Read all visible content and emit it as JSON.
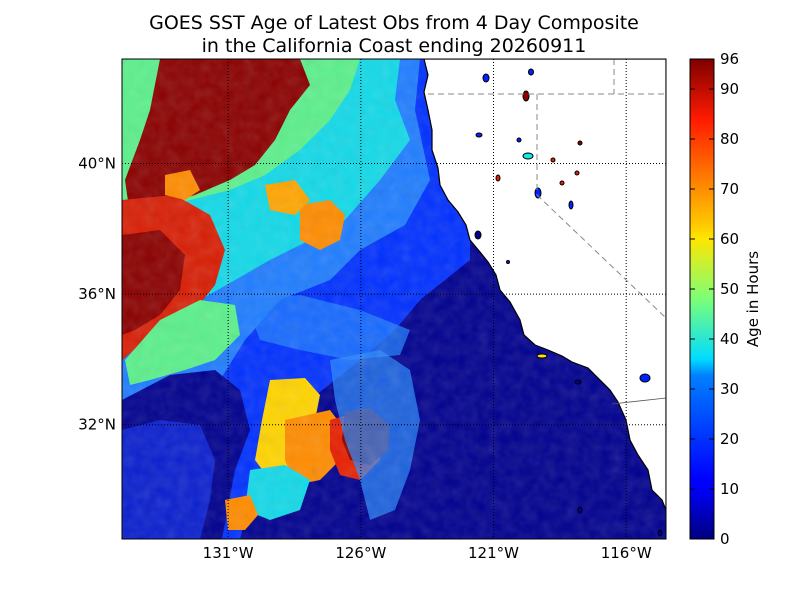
{
  "title_line1": "GOES SST Age of Latest Obs from 4 Day Composite",
  "title_line2": "in the California Coast ending 20260911",
  "map": {
    "lon_range": [
      -135,
      -114.5
    ],
    "lat_range": [
      28.5,
      43.2
    ],
    "lon_ticks": [
      {
        "value": -131,
        "label": "131°W"
      },
      {
        "value": -126,
        "label": "126°W"
      },
      {
        "value": -121,
        "label": "121°W"
      },
      {
        "value": -116,
        "label": "116°W"
      }
    ],
    "lat_ticks": [
      {
        "value": 40,
        "label": "40°N"
      },
      {
        "value": 36,
        "label": "36°N"
      },
      {
        "value": 32,
        "label": "32°N"
      }
    ],
    "grid": "dotted"
  },
  "colorbar": {
    "label": "Age in Hours",
    "min": 0,
    "max": 96,
    "colormap": "jet",
    "ticks": [
      {
        "value": 0,
        "label": "0"
      },
      {
        "value": 10,
        "label": "10"
      },
      {
        "value": 20,
        "label": "20"
      },
      {
        "value": 30,
        "label": "30"
      },
      {
        "value": 40,
        "label": "40"
      },
      {
        "value": 50,
        "label": "50"
      },
      {
        "value": 60,
        "label": "60"
      },
      {
        "value": 70,
        "label": "70"
      },
      {
        "value": 80,
        "label": "80"
      },
      {
        "value": 90,
        "label": "90"
      },
      {
        "value": 96,
        "label": "96"
      }
    ]
  },
  "colors": {
    "deep_blue": "#00008f",
    "blue": "#0022ff",
    "light_blue": "#2a8cff",
    "cyan": "#19e6e6",
    "green": "#5ff08a",
    "yellow": "#ffe600",
    "orange": "#ff8c00",
    "red": "#e61e00",
    "dark_red": "#8b0000",
    "land": "#ffffff"
  }
}
